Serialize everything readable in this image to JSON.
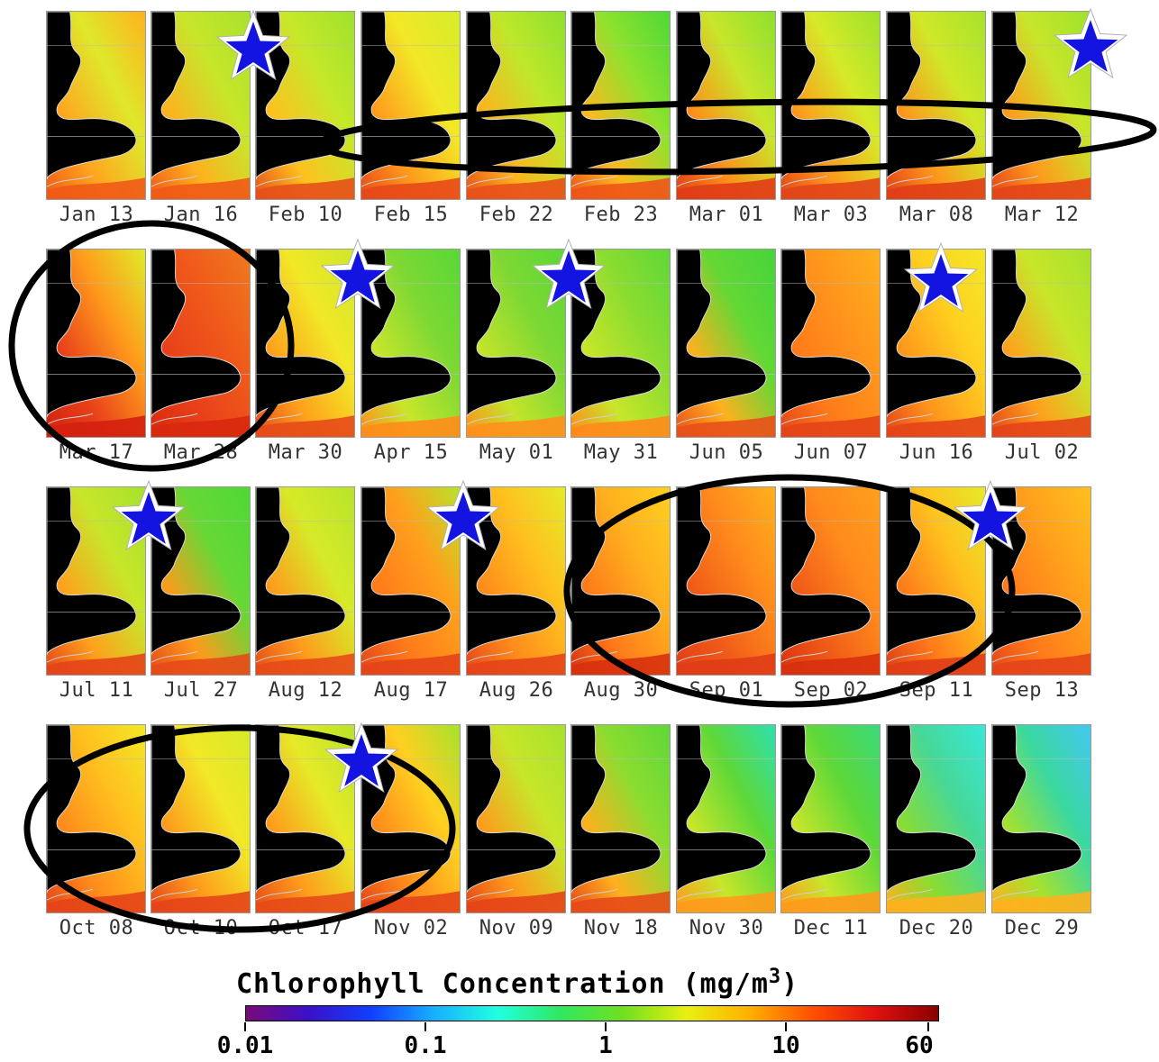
{
  "panels": [
    {
      "date": "Jan 13",
      "palette": [
        "#ffb21e",
        "#dfe82a",
        "#ffa520",
        "#f05a16"
      ]
    },
    {
      "date": "Jan 16",
      "palette": [
        "#a8e22c",
        "#c8e62a",
        "#ffb01e",
        "#f05a16"
      ]
    },
    {
      "date": "Feb 10",
      "palette": [
        "#9ee22c",
        "#c6e82a",
        "#ffc01e",
        "#e6501a"
      ]
    },
    {
      "date": "Feb 15",
      "palette": [
        "#d6ec2a",
        "#f2e826",
        "#ff9a1c",
        "#e84818"
      ]
    },
    {
      "date": "Feb 22",
      "palette": [
        "#8ee02e",
        "#bfe82a",
        "#ffb21e",
        "#e8501a"
      ]
    },
    {
      "date": "Feb 23",
      "palette": [
        "#4fd836",
        "#8ee22e",
        "#ffb81e",
        "#ee5418"
      ]
    },
    {
      "date": "Mar 01",
      "palette": [
        "#8ee02e",
        "#c8e62a",
        "#ff8c1a",
        "#e03c16"
      ]
    },
    {
      "date": "Mar 03",
      "palette": [
        "#9ee22c",
        "#d6ea28",
        "#ff961c",
        "#e24418"
      ]
    },
    {
      "date": "Mar 08",
      "palette": [
        "#a6e22c",
        "#d0e828",
        "#ff941c",
        "#e03e16"
      ]
    },
    {
      "date": "Mar 12",
      "palette": [
        "#9ee22c",
        "#c8e62a",
        "#ff9a1c",
        "#e44418"
      ]
    },
    {
      "date": "Mar 17",
      "palette": [
        "#dfec28",
        "#ff9a1c",
        "#e8401a",
        "#d4200e"
      ]
    },
    {
      "date": "Mar 28",
      "palette": [
        "#f07a1e",
        "#f05a1a",
        "#e8401a",
        "#d8280e"
      ]
    },
    {
      "date": "Mar 30",
      "palette": [
        "#cde82a",
        "#f2e826",
        "#ffa01c",
        "#e64a18"
      ]
    },
    {
      "date": "Apr 15",
      "palette": [
        "#58d836",
        "#7ed834",
        "#c8e62a",
        "#ff8c1a"
      ]
    },
    {
      "date": "May 01",
      "palette": [
        "#5ad836",
        "#7ed834",
        "#c4e42a",
        "#ff901c"
      ]
    },
    {
      "date": "May 31",
      "palette": [
        "#5ed838",
        "#8cdc30",
        "#c8e62a",
        "#ff8a1c"
      ]
    },
    {
      "date": "Jun 05",
      "palette": [
        "#46d43a",
        "#62d836",
        "#ffb01e",
        "#e8501a"
      ]
    },
    {
      "date": "Jun 07",
      "palette": [
        "#ffb01e",
        "#ff961c",
        "#ff7a1a",
        "#e44418"
      ]
    },
    {
      "date": "Jun 16",
      "palette": [
        "#f2e826",
        "#ffd020",
        "#ff961c",
        "#e44418"
      ]
    },
    {
      "date": "Jul 02",
      "palette": [
        "#a6e22c",
        "#c8e62a",
        "#ffa01c",
        "#e44418"
      ]
    },
    {
      "date": "Jul 11",
      "palette": [
        "#a6e22c",
        "#c8e62a",
        "#ffa01c",
        "#e44418"
      ]
    },
    {
      "date": "Jul 27",
      "palette": [
        "#4fd836",
        "#66d836",
        "#ff9a1c",
        "#e64a18"
      ]
    },
    {
      "date": "Aug 12",
      "palette": [
        "#b8e42a",
        "#d6ea28",
        "#ff9a1c",
        "#e64a18"
      ]
    },
    {
      "date": "Aug 17",
      "palette": [
        "#b8e42a",
        "#ffa01c",
        "#ff7a1a",
        "#e44418"
      ]
    },
    {
      "date": "Aug 26",
      "palette": [
        "#e6ea28",
        "#ffc01e",
        "#ff8a1c",
        "#e44418"
      ]
    },
    {
      "date": "Aug 30",
      "palette": [
        "#ffd020",
        "#ffb01e",
        "#ff7a1a",
        "#d8300e"
      ]
    },
    {
      "date": "Sep 01",
      "palette": [
        "#ffb01e",
        "#ff8a1c",
        "#f05a18",
        "#e03c16"
      ]
    },
    {
      "date": "Sep 02",
      "palette": [
        "#ffa01c",
        "#ff8a1c",
        "#f05a18",
        "#d8300e"
      ]
    },
    {
      "date": "Sep 11",
      "palette": [
        "#e6ea28",
        "#ffc01e",
        "#ff7a1a",
        "#e03c16"
      ]
    },
    {
      "date": "Sep 13",
      "palette": [
        "#ffc01e",
        "#ffa01c",
        "#ff7a1a",
        "#e44418"
      ]
    },
    {
      "date": "Oct 08",
      "palette": [
        "#f2e826",
        "#ffc01e",
        "#ff8a1c",
        "#e44418"
      ]
    },
    {
      "date": "Oct 10",
      "palette": [
        "#d6ea28",
        "#f2e826",
        "#ff9a1c",
        "#e44418"
      ]
    },
    {
      "date": "Oct 17",
      "palette": [
        "#b8e42a",
        "#e6ea28",
        "#ff9a1c",
        "#e64a18"
      ]
    },
    {
      "date": "Nov 02",
      "palette": [
        "#a6e22c",
        "#ffd020",
        "#ff8a1c",
        "#e44418"
      ]
    },
    {
      "date": "Nov 09",
      "palette": [
        "#a6e22c",
        "#c8e62a",
        "#ff9a1c",
        "#e44418"
      ]
    },
    {
      "date": "Nov 18",
      "palette": [
        "#5ed838",
        "#8cdc30",
        "#ffb01e",
        "#e64a18"
      ]
    },
    {
      "date": "Nov 30",
      "palette": [
        "#2ee0b0",
        "#5ed838",
        "#c8e62a",
        "#ff9a1c"
      ]
    },
    {
      "date": "Dec 11",
      "palette": [
        "#3ad87a",
        "#5ed838",
        "#c8e62a",
        "#ff9a1c"
      ]
    },
    {
      "date": "Dec 20",
      "palette": [
        "#38e8d8",
        "#46d898",
        "#8cdc30",
        "#ffb01e"
      ]
    },
    {
      "date": "Dec 29",
      "palette": [
        "#44c8f0",
        "#3ad8a0",
        "#a6e22c",
        "#ffb01e"
      ]
    }
  ],
  "legend": {
    "title": "Chlorophyll Concentration (mg/m",
    "title_superscript": "3",
    "title_suffix": ")",
    "ticks": [
      "0.01",
      "0.1",
      "1",
      "10",
      "60"
    ],
    "colorbar_colors": [
      "#7a0a78",
      "#3a10c8",
      "#1040ff",
      "#18b0ff",
      "#20ffe0",
      "#30e860",
      "#70e020",
      "#e8f010",
      "#ffb000",
      "#ff5000",
      "#e01010",
      "#8a0000"
    ]
  },
  "highlight_colors": {
    "star_fill": "#1414e0",
    "ellipse_stroke": "#000000"
  }
}
